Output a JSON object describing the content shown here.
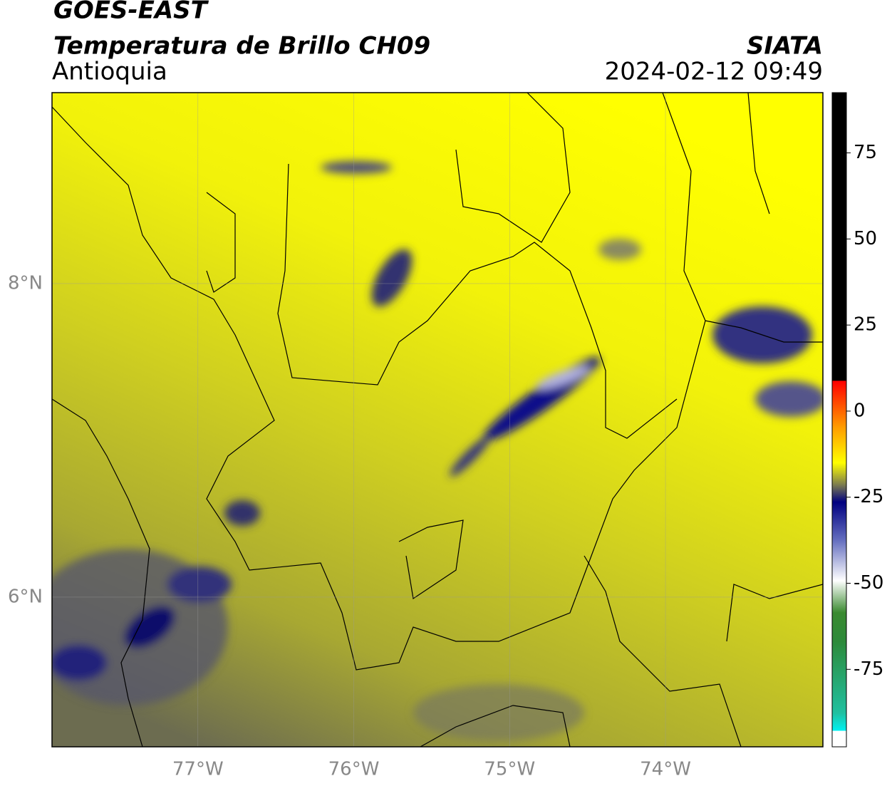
{
  "header": {
    "satellite": "GOES-EAST",
    "product": "Temperatura de Brillo CH09",
    "region": "Antioquia",
    "source": "SIATA",
    "datetime": "2024-02-12 09:49"
  },
  "map": {
    "xlim": [
      -77.936,
      -72.99
    ],
    "ylim": [
      5.045,
      9.218
    ],
    "xticks": [
      {
        "value": -77,
        "label": "77°W"
      },
      {
        "value": -76,
        "label": "76°W"
      },
      {
        "value": -75,
        "label": "75°W"
      },
      {
        "value": -74,
        "label": "74°W"
      }
    ],
    "yticks": [
      {
        "value": 8,
        "label": "8°N"
      },
      {
        "value": 6,
        "label": "6°N"
      }
    ],
    "grid": true
  },
  "colorbar": {
    "ylim": [
      -97.5,
      92.5
    ],
    "yticks": [
      75,
      50,
      25,
      0,
      -25,
      -50,
      -75
    ]
  }
}
